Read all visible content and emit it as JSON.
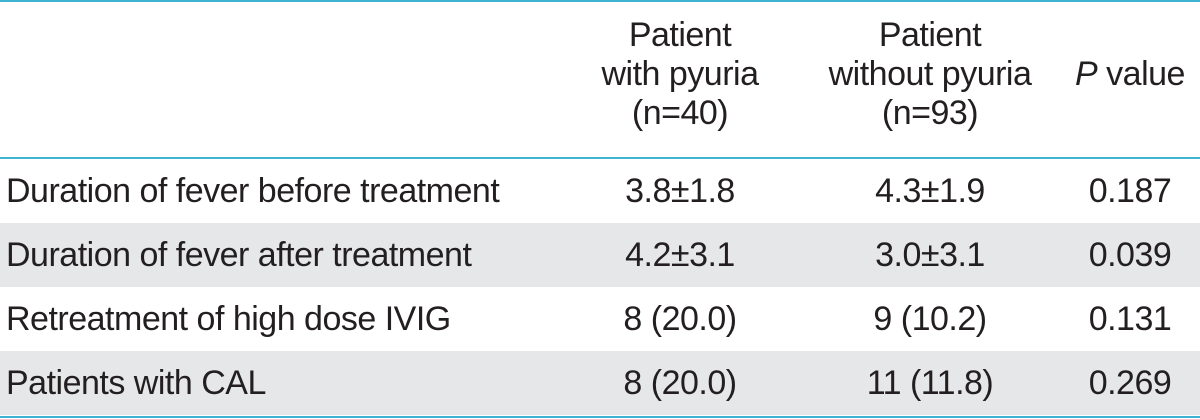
{
  "table": {
    "header": {
      "col1": [
        "Patient",
        "with pyuria",
        "(n=40)"
      ],
      "col2": [
        "Patient",
        "without pyuria",
        "(n=93)"
      ],
      "col3": {
        "p": "P",
        "rest": " value"
      }
    },
    "rows": [
      {
        "label": "Duration of fever before treatment",
        "with": "3.8±1.8",
        "without": "4.3±1.9",
        "p": "0.187"
      },
      {
        "label": "Duration of fever after treatment",
        "with": "4.2±3.1",
        "without": "3.0±3.1",
        "p": "0.039"
      },
      {
        "label": "Retreatment of high dose IVIG",
        "with": "8 (20.0)",
        "without": "9 (10.2)",
        "p": "0.131"
      },
      {
        "label": "Patients with CAL",
        "with": "8 (20.0)",
        "without": "11 (11.8)",
        "p": "0.269"
      }
    ]
  },
  "colors": {
    "rule": "#3fb4d2",
    "row_shade": "#e6e7e8",
    "text": "#231f20"
  }
}
